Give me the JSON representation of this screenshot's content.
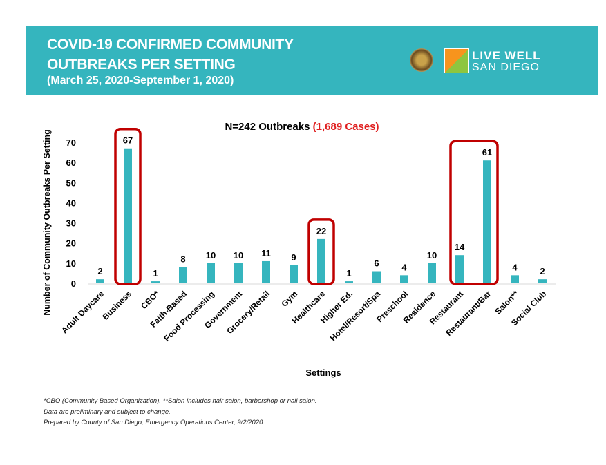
{
  "header": {
    "title_line1": "COVID-19 CONFIRMED COMMUNITY",
    "title_line2": "OUTBREAKS PER SETTING",
    "date_range": "(March 25, 2020-September 1, 2020)",
    "logo_line1": "LIVE WELL",
    "logo_line2": "SAN DIEGO",
    "background_color": "#35b5be"
  },
  "chart_data": {
    "type": "bar",
    "title_prefix": "N=242 Outbreaks",
    "title_highlight": "(1,689 Cases)",
    "xlabel": "Settings",
    "ylabel": "Number of Community Outbreaks Per Setting",
    "ylim": [
      0,
      70
    ],
    "yticks": [
      0,
      10,
      20,
      30,
      40,
      50,
      60,
      70
    ],
    "grid": false,
    "bar_color": "#35b5be",
    "highlight_color": "#c00000",
    "categories": [
      "Adult Daycare",
      "Business",
      "CBO*",
      "Faith-Based",
      "Food Processing",
      "Government",
      "Grocery/Retail",
      "Gym",
      "Healthcare",
      "Higher Ed.",
      "Hotel/Resort/Spa",
      "Preschool",
      "Residence",
      "Restaurant",
      "Restaurant/Bar",
      "Salon**",
      "Social Club"
    ],
    "values": [
      2,
      67,
      1,
      8,
      10,
      10,
      11,
      9,
      22,
      1,
      6,
      4,
      10,
      14,
      61,
      4,
      2
    ],
    "highlighted_groups": [
      [
        "Business"
      ],
      [
        "Healthcare"
      ],
      [
        "Restaurant",
        "Restaurant/Bar"
      ]
    ]
  },
  "footer": {
    "line1": "*CBO (Community Based Organization). **Salon includes hair salon, barbershop or nail salon.",
    "line2": "Data are preliminary and subject to change.",
    "line3": "Prepared by County of San Diego, Emergency Operations Center, 9/2/2020."
  }
}
